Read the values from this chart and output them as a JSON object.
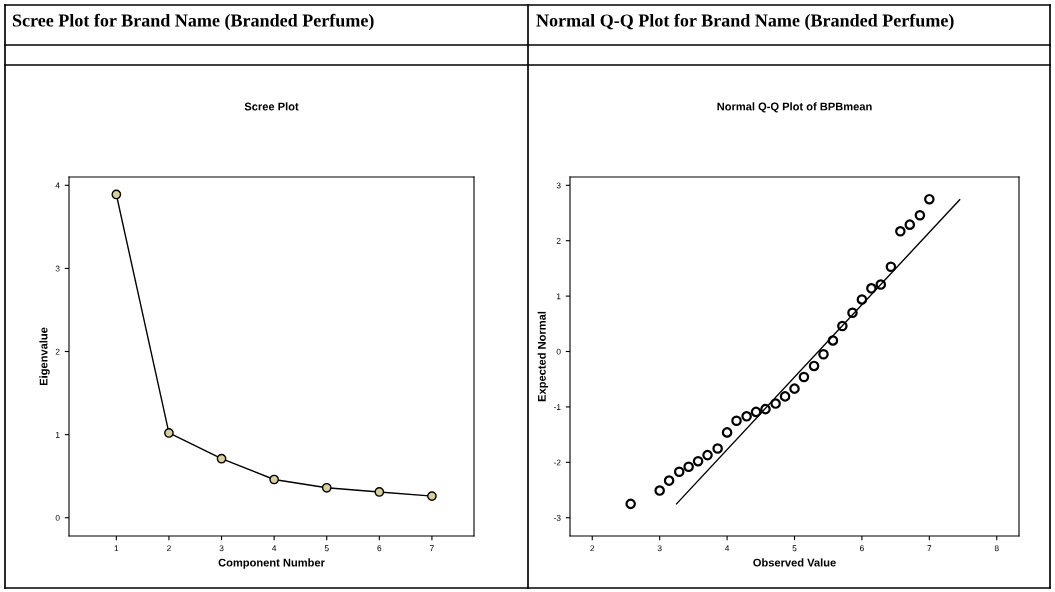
{
  "chart_data": [
    {
      "type": "line",
      "title": "Scree Plot for Brand Name (Branded Perfume)",
      "subtitle": "Scree Plot",
      "xlabel": "Component Number",
      "ylabel": "Eigenvalue",
      "marker": "circle",
      "line_style": "solid",
      "grid": false,
      "legend": false,
      "xlim": [
        0.1,
        7.8
      ],
      "xticks": [
        1,
        2,
        3,
        4,
        5,
        6,
        7
      ],
      "ylim": [
        -0.22,
        4.1
      ],
      "yticks": [
        0,
        1,
        2,
        3,
        4
      ],
      "series": [
        {
          "x": [
            1,
            2,
            3,
            4,
            5,
            6,
            7
          ],
          "values": [
            3.89,
            1.02,
            0.71,
            0.46,
            0.36,
            0.31,
            0.26
          ],
          "color": "#d8cf9a"
        }
      ]
    },
    {
      "type": "scatter",
      "title": "Normal Q-Q Plot for Brand Name (Branded Perfume)",
      "subtitle": "Normal Q-Q Plot of BPBmean",
      "xlabel": "Observed Value",
      "ylabel": "Expected Normal",
      "marker": "circle",
      "grid": false,
      "legend": false,
      "xlim": [
        1.67,
        8.33
      ],
      "xticks": [
        2,
        3,
        4,
        5,
        6,
        7,
        8
      ],
      "ylim": [
        -3.33,
        3.15
      ],
      "yticks": [
        {
          "value": -3,
          "label": "-3"
        },
        {
          "value": -2,
          "label": "-2"
        },
        {
          "value": -1,
          "label": "-1"
        },
        0,
        1,
        2,
        3
      ],
      "series": [
        {
          "type": "scatter",
          "color": "#000000",
          "x": [
            2.57,
            3.0,
            3.14,
            3.29,
            3.43,
            3.57,
            3.71,
            3.86,
            4.0,
            4.14,
            4.29,
            4.43,
            4.57,
            4.72,
            4.86,
            5.0,
            5.14,
            5.29,
            5.43,
            5.57,
            5.71,
            5.86,
            6.0,
            6.14,
            6.28,
            6.43,
            6.57,
            6.71,
            6.86,
            7.0
          ],
          "values": [
            -2.75,
            -2.51,
            -2.33,
            -2.17,
            -2.08,
            -1.98,
            -1.87,
            -1.75,
            -1.46,
            -1.25,
            -1.17,
            -1.09,
            -1.04,
            -0.94,
            -0.81,
            -0.67,
            -0.46,
            -0.26,
            -0.05,
            0.2,
            0.46,
            0.7,
            0.94,
            1.14,
            1.21,
            1.53,
            2.17,
            2.29,
            2.46,
            2.75
          ]
        },
        {
          "type": "line",
          "color": "#000000",
          "marker": "none",
          "x": [
            3.25,
            7.45
          ],
          "values": [
            -2.75,
            2.74
          ]
        }
      ]
    }
  ]
}
